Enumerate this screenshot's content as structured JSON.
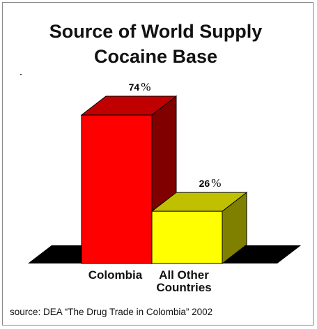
{
  "title_line1": "Source of World Supply",
  "title_line2": "Cocaine Base",
  "source": "source: DEA “The Drug Trade in Colombia” 2002",
  "colors": {
    "colombia_front": "#ff0000",
    "colombia_side": "#800000",
    "colombia_top": "#c00000",
    "other_front": "#ffff00",
    "other_side": "#808000",
    "other_top": "#c0c000",
    "floor": "#000000"
  },
  "chart_data": {
    "type": "bar",
    "title": "Source of World Supply Cocaine Base",
    "categories": [
      "Colombia",
      "All Other Countries"
    ],
    "category_lines": [
      [
        "Colombia"
      ],
      [
        "All Other",
        "Countries"
      ]
    ],
    "values": [
      74,
      26
    ],
    "data_labels": [
      "74",
      "26"
    ],
    "unit": "%",
    "ylim": [
      0,
      74
    ],
    "grid": false,
    "legend": "none",
    "style": "3d"
  }
}
